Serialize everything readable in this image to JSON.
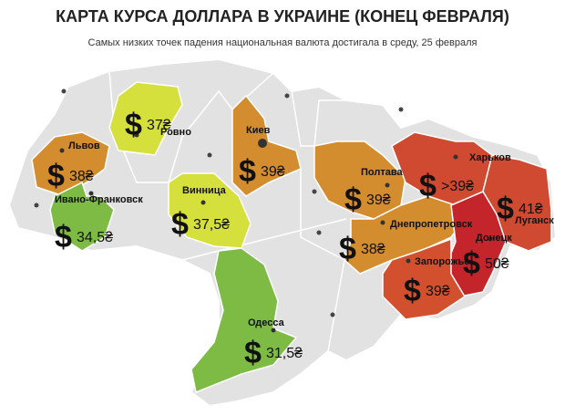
{
  "header": {
    "title": "КАРТА КУРСА ДОЛЛАРА В УКРАИНЕ (КОНЕЦ ФЕВРАЛЯ)",
    "subtitle": "Самых низких точек падения национальная валюта достигала в среду, 25 февраля"
  },
  "currency_symbol": "$",
  "regions": [
    {
      "city": "Львов",
      "rate": "38₴",
      "color": "#d38c2e"
    },
    {
      "city": "Ровно",
      "rate": "37₴",
      "color": "#d6e03c"
    },
    {
      "city": "Киев",
      "rate": "39₴",
      "color": "#d38c2e"
    },
    {
      "city": "Ивано-Франковск",
      "rate": "34,5₴",
      "color": "#7dbb44"
    },
    {
      "city": "Винница",
      "rate": "37,5₴",
      "color": "#d6e03c"
    },
    {
      "city": "Полтава",
      "rate": "39₴",
      "color": "#d38c2e"
    },
    {
      "city": "Харьков",
      "rate": ">39₴",
      "color": "#cf4a30"
    },
    {
      "city": "Луганск",
      "rate": "41₴",
      "color": "#cf4a30"
    },
    {
      "city": "Днепропетровск",
      "rate": "38₴",
      "color": "#d38c2e"
    },
    {
      "city": "Донецк",
      "rate": "50₴",
      "color": "#c4252a"
    },
    {
      "city": "Запорожье",
      "rate": "39₴",
      "color": "#d3502f"
    },
    {
      "city": "Одесса",
      "rate": "31,5₴",
      "color": "#7dbb44"
    }
  ]
}
